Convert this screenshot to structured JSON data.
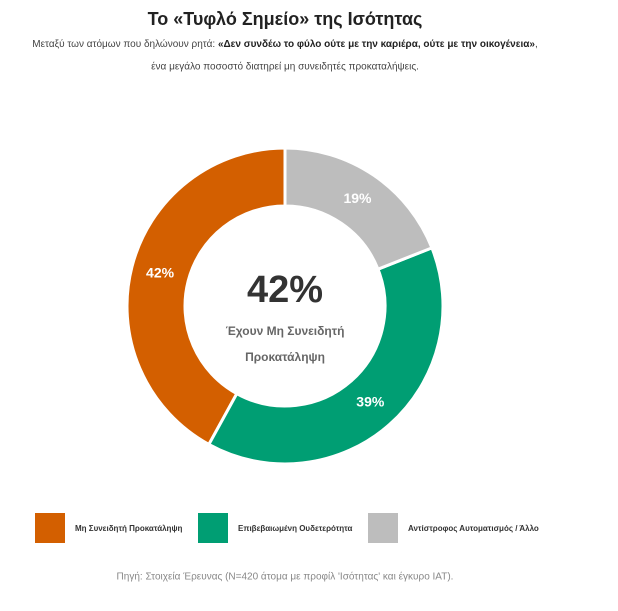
{
  "chart_data": {
    "type": "donut",
    "title": "Το «Τυφλό Σημείο» της Ισότητας",
    "subtitle": [
      "Μεταξύ των ατόμων που δηλώνουν ρητά: ",
      "«Δεν συνδέω το φύλο ούτε με την καριέρα, ούτε με την οικογένεια»",
      ",",
      "ένα μεγάλο ποσοστό διατηρεί μη συνειδητές προκαταλήψεις."
    ],
    "categories": [
      "Μη Συνειδητή Προκατάληψη",
      "Επιβεβαιωμένη Ουδετερότητα",
      "Αντίστροφος Αυτοματισμός / Άλλο"
    ],
    "values": [
      42,
      39,
      19
    ],
    "value_labels": [
      "42%",
      "39%",
      "19%"
    ],
    "colors": [
      "#d35f00",
      "#009e73",
      "#bdbdbd"
    ],
    "center_value": "42%",
    "center_text": [
      "Έχουν Μη Συνειδητή",
      "Προκατάληψη"
    ],
    "source": "Πηγή: Στοιχεία Έρευνας (N=420 άτομα με προφίλ 'Ισότητας' και έγκυρο IAT)."
  }
}
